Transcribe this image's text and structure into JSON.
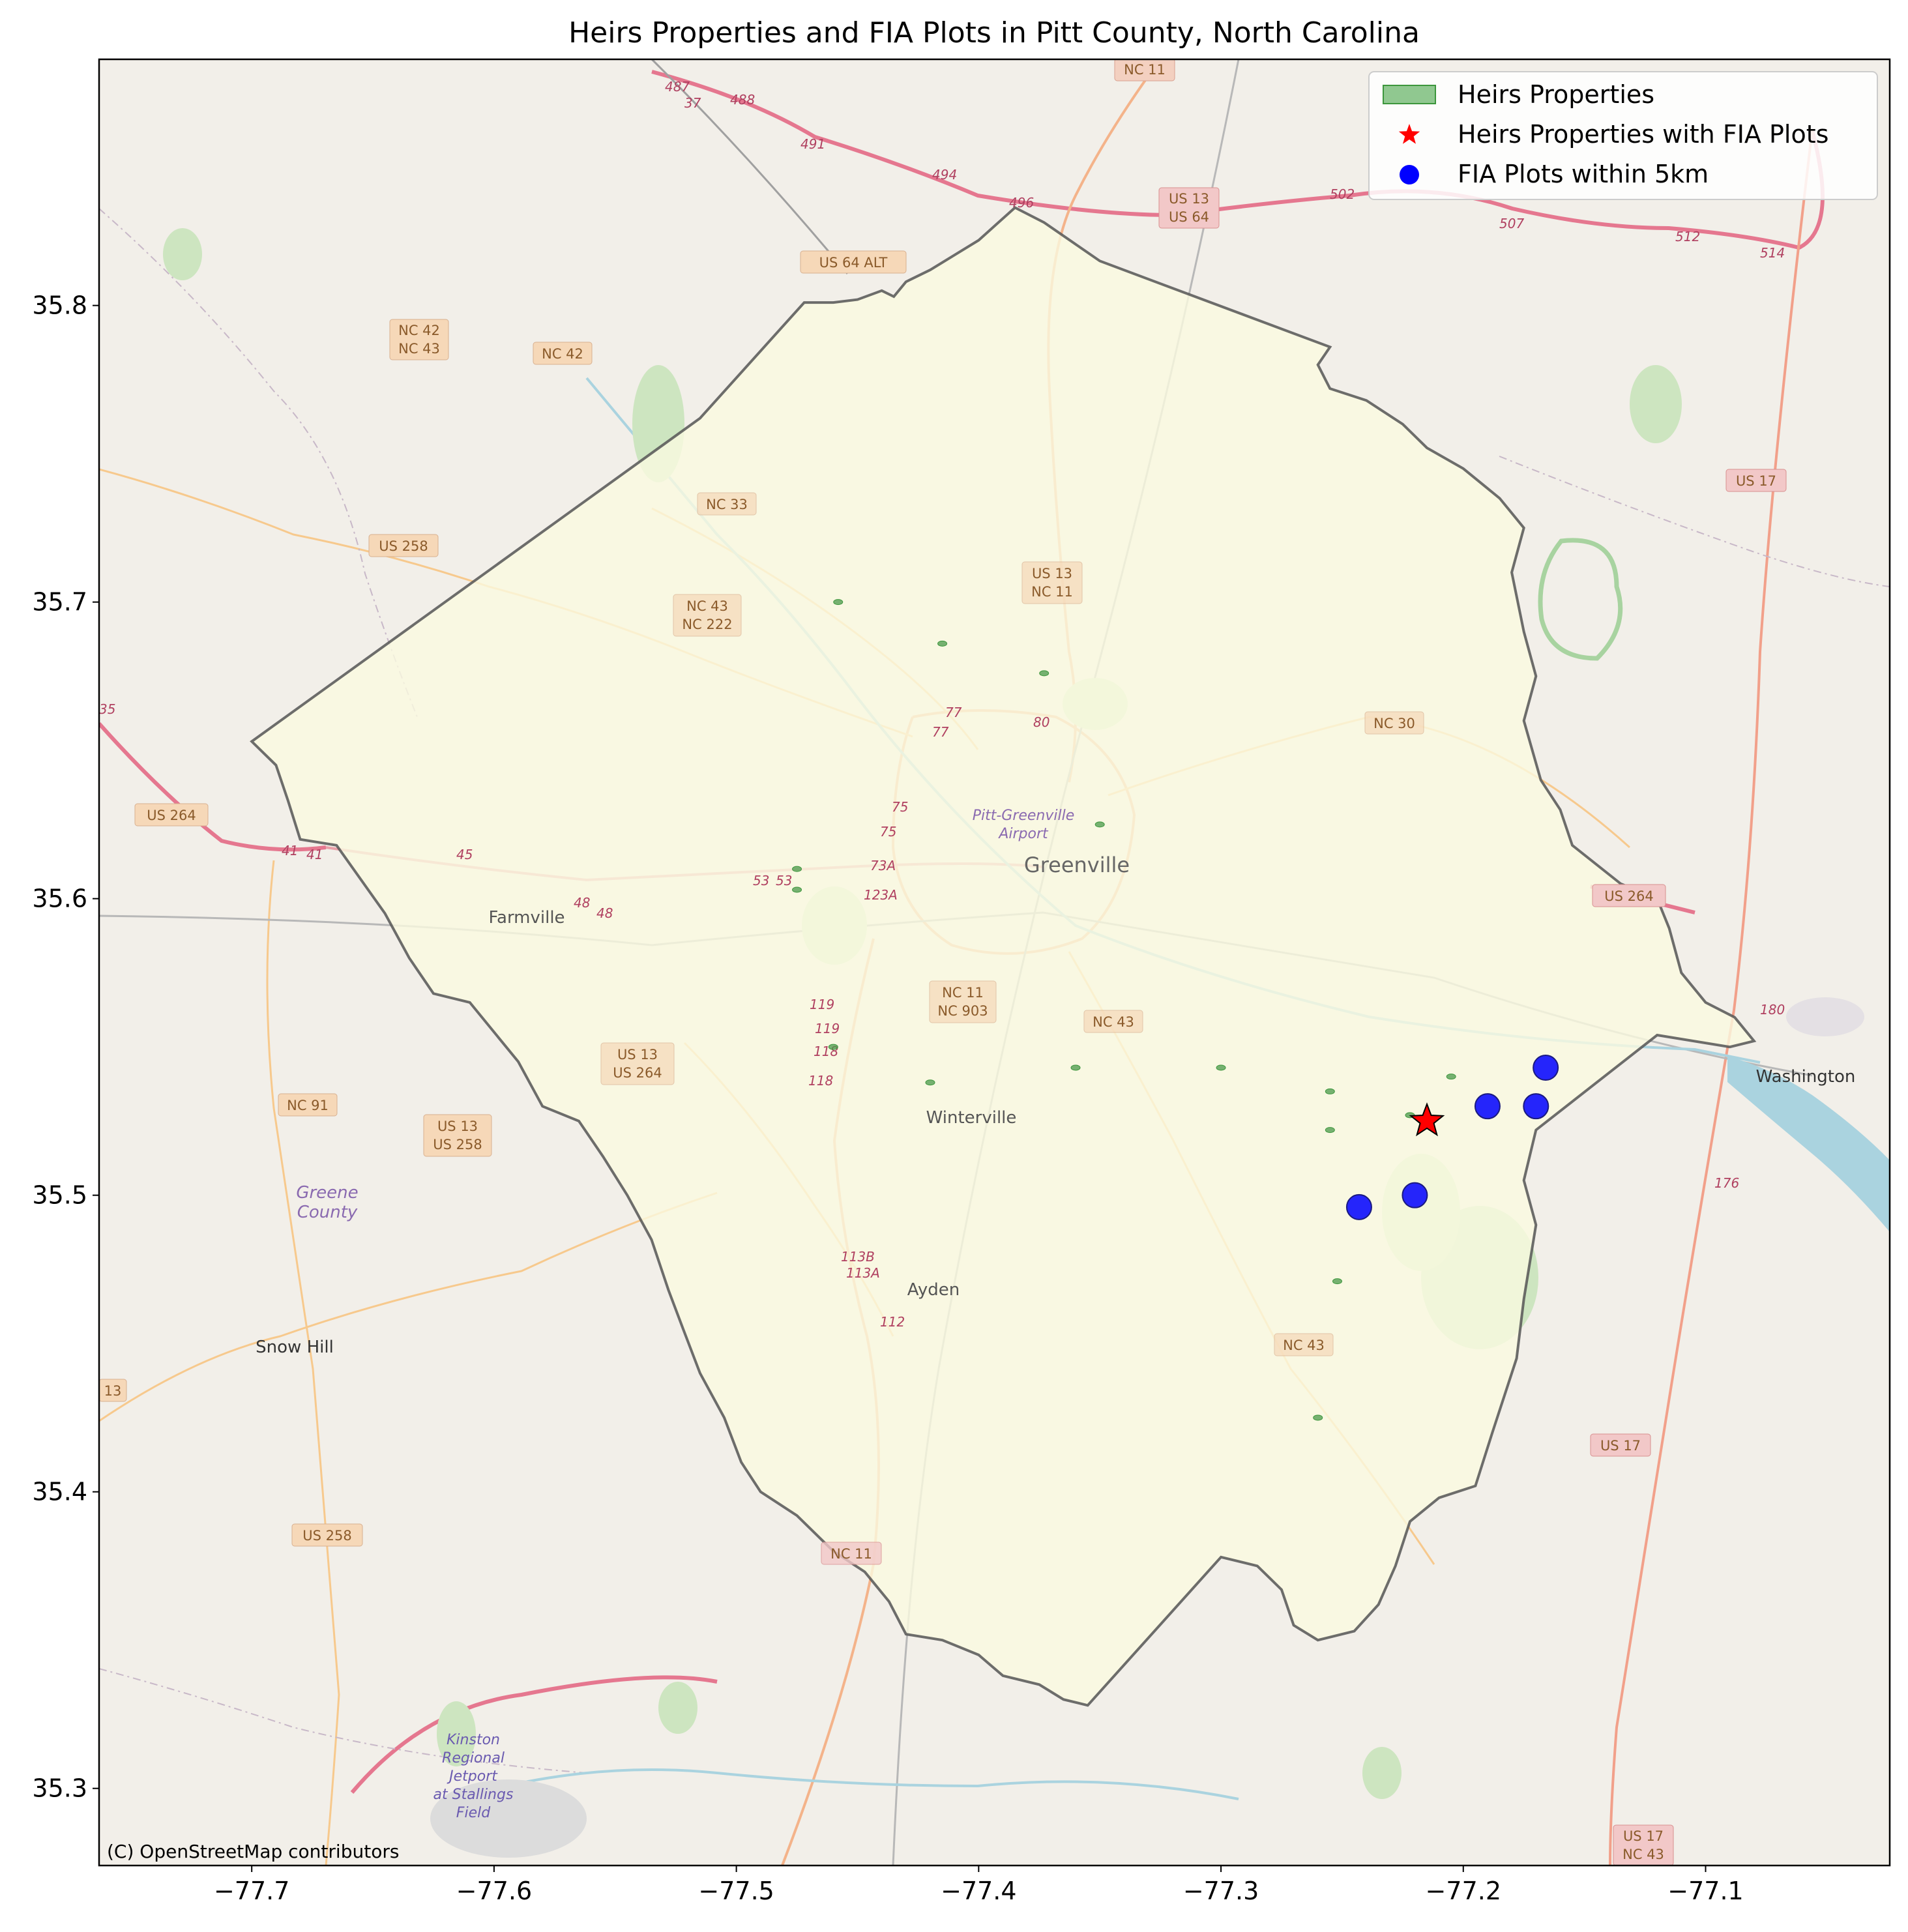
{
  "title": "Heirs Properties and FIA Plots in Pitt County, North Carolina",
  "attribution": "(C) OpenStreetMap contributors",
  "legend": {
    "placement": "upper-right",
    "items": [
      {
        "label": "Heirs Properties",
        "symbol": "patch",
        "color": "#90c890"
      },
      {
        "label": "Heirs Properties with FIA Plots",
        "symbol": "star",
        "color": "#ff0000"
      },
      {
        "label": "FIA Plots within 5km",
        "symbol": "circle",
        "color": "#0000ff"
      }
    ]
  },
  "colors": {
    "county_fill": "#fafae0",
    "county_edge": "#555555",
    "basemap": "#f2efe9",
    "heirs": "#3c963c",
    "fia": "#0000ff",
    "star": "#ff0000"
  },
  "map_labels": {
    "towns": {
      "greenville": "Greenville",
      "farmville": "Farmville",
      "winterville": "Winterville",
      "ayden": "Ayden",
      "snow_hill": "Snow Hill",
      "washington": "Washington",
      "greene_county_1": "Greene",
      "greene_county_2": "County",
      "airport_1": "Pitt-Greenville",
      "airport_2": "Airport",
      "kinston_1": "Kinston",
      "kinston_2": "Regional",
      "kinston_3": "Jetport",
      "kinston_4": "at Stallings",
      "kinston_5": "Field"
    },
    "routes": {
      "nc11_top": "NC 11",
      "us13_us64_a": "US 13",
      "us13_us64_b": "US 64",
      "us64alt": "US 64 ALT",
      "nc42_43_a": "NC 42",
      "nc42_43_b": "NC 43",
      "nc42": "NC 42",
      "us17_top": "US 17",
      "nc33": "NC 33",
      "us258_top": "US 258",
      "us13_nc11_a": "US 13",
      "us13_nc11_b": "NC 11",
      "nc43_nc222_a": "NC 43",
      "nc43_nc222_b": "NC 222",
      "nc30": "NC 30",
      "us264_left": "US 264",
      "us264_right": "US 264",
      "nc11_nc903_a": "NC 11",
      "nc11_nc903_b": "NC 903",
      "nc43_mid": "NC 43",
      "us13_us264_a": "US 13",
      "us13_us264_b": "US 264",
      "nc91": "NC 91",
      "us13_us258_a": "US 13",
      "us13_us258_b": "US 258",
      "nc43_low": "NC 43",
      "us17_low": "US 17",
      "us258_low": "US 258",
      "nc11_low": "NC 11",
      "us17_nc43_a": "US 17",
      "us17_nc43_b": "NC 43",
      "r13_left": "13"
    },
    "exits": [
      "487",
      "37",
      "488",
      "491",
      "494",
      "496",
      "502",
      "507",
      "512",
      "514",
      "77",
      "77",
      "80",
      "75",
      "75",
      "73A",
      "123A",
      "53",
      "53",
      "45",
      "48",
      "48",
      "41",
      "41",
      "119",
      "119",
      "118",
      "118",
      "113B",
      "113A",
      "112",
      "180",
      "176",
      "35"
    ]
  },
  "chart_data": {
    "type": "map",
    "title": "Heirs Properties and FIA Plots in Pitt County, North Carolina",
    "xlabel": "",
    "ylabel": "",
    "xlim": [
      -77.763,
      -77.024
    ],
    "ylim": [
      35.274,
      35.883
    ],
    "x_ticks": [
      -77.7,
      -77.6,
      -77.5,
      -77.4,
      -77.3,
      -77.2,
      -77.1
    ],
    "x_tick_labels": [
      "−77.7",
      "−77.6",
      "−77.5",
      "−77.4",
      "−77.3",
      "−77.2",
      "−77.1"
    ],
    "y_ticks": [
      35.3,
      35.4,
      35.5,
      35.6,
      35.7,
      35.8
    ],
    "y_tick_labels": [
      "35.3",
      "35.4",
      "35.5",
      "35.6",
      "35.7",
      "35.8"
    ],
    "grid": false,
    "county_boundary": [
      [
        -77.7,
        35.653
      ],
      [
        -77.69,
        35.645
      ],
      [
        -77.685,
        35.633
      ],
      [
        -77.68,
        35.62
      ],
      [
        -77.665,
        35.618
      ],
      [
        -77.645,
        35.595
      ],
      [
        -77.635,
        35.58
      ],
      [
        -77.625,
        35.568
      ],
      [
        -77.61,
        35.565
      ],
      [
        -77.6,
        35.555
      ],
      [
        -77.59,
        35.545
      ],
      [
        -77.58,
        35.53
      ],
      [
        -77.565,
        35.525
      ],
      [
        -77.555,
        35.513
      ],
      [
        -77.545,
        35.5
      ],
      [
        -77.535,
        35.485
      ],
      [
        -77.528,
        35.468
      ],
      [
        -77.522,
        35.455
      ],
      [
        -77.515,
        35.44
      ],
      [
        -77.505,
        35.425
      ],
      [
        -77.498,
        35.41
      ],
      [
        -77.49,
        35.4
      ],
      [
        -77.475,
        35.392
      ],
      [
        -77.46,
        35.38
      ],
      [
        -77.447,
        35.373
      ],
      [
        -77.437,
        35.363
      ],
      [
        -77.43,
        35.352
      ],
      [
        -77.415,
        35.35
      ],
      [
        -77.4,
        35.345
      ],
      [
        -77.39,
        35.338
      ],
      [
        -77.375,
        35.335
      ],
      [
        -77.365,
        35.33
      ],
      [
        -77.355,
        35.328
      ],
      [
        -77.3,
        35.378
      ],
      [
        -77.285,
        35.375
      ],
      [
        -77.275,
        35.367
      ],
      [
        -77.27,
        35.355
      ],
      [
        -77.26,
        35.35
      ],
      [
        -77.245,
        35.353
      ],
      [
        -77.235,
        35.362
      ],
      [
        -77.228,
        35.375
      ],
      [
        -77.222,
        35.39
      ],
      [
        -77.21,
        35.398
      ],
      [
        -77.195,
        35.402
      ],
      [
        -77.188,
        35.42
      ],
      [
        -77.178,
        35.445
      ],
      [
        -77.175,
        35.465
      ],
      [
        -77.17,
        35.49
      ],
      [
        -77.175,
        35.505
      ],
      [
        -77.17,
        35.522
      ],
      [
        -77.12,
        35.554
      ],
      [
        -77.09,
        35.55
      ],
      [
        -77.08,
        35.552
      ],
      [
        -77.088,
        35.56
      ],
      [
        -77.1,
        35.565
      ],
      [
        -77.11,
        35.575
      ],
      [
        -77.115,
        35.59
      ],
      [
        -77.12,
        35.6
      ],
      [
        -77.135,
        35.605
      ],
      [
        -77.155,
        35.618
      ],
      [
        -77.16,
        35.63
      ],
      [
        -77.168,
        35.64
      ],
      [
        -77.175,
        35.66
      ],
      [
        -77.17,
        35.675
      ],
      [
        -77.175,
        35.69
      ],
      [
        -77.18,
        35.71
      ],
      [
        -77.175,
        35.725
      ],
      [
        -77.185,
        35.735
      ],
      [
        -77.2,
        35.745
      ],
      [
        -77.215,
        35.752
      ],
      [
        -77.225,
        35.76
      ],
      [
        -77.24,
        35.768
      ],
      [
        -77.255,
        35.772
      ],
      [
        -77.26,
        35.78
      ],
      [
        -77.255,
        35.786
      ],
      [
        -77.35,
        35.815
      ],
      [
        -77.373,
        35.828
      ],
      [
        -77.385,
        35.833
      ],
      [
        -77.4,
        35.822
      ],
      [
        -77.41,
        35.817
      ],
      [
        -77.42,
        35.812
      ],
      [
        -77.43,
        35.808
      ],
      [
        -77.435,
        35.803
      ],
      [
        -77.44,
        35.805
      ],
      [
        -77.45,
        35.802
      ],
      [
        -77.46,
        35.801
      ],
      [
        -77.472,
        35.801
      ],
      [
        -77.515,
        35.762
      ],
      [
        -77.7,
        35.653
      ]
    ],
    "heirs_properties": [
      {
        "lon": -77.458,
        "lat": 35.7
      },
      {
        "lon": -77.415,
        "lat": 35.686
      },
      {
        "lon": -77.373,
        "lat": 35.676
      },
      {
        "lon": -77.35,
        "lat": 35.625
      },
      {
        "lon": -77.475,
        "lat": 35.603
      },
      {
        "lon": -77.475,
        "lat": 35.61
      },
      {
        "lon": -77.46,
        "lat": 35.55
      },
      {
        "lon": -77.42,
        "lat": 35.538
      },
      {
        "lon": -77.36,
        "lat": 35.543
      },
      {
        "lon": -77.3,
        "lat": 35.543
      },
      {
        "lon": -77.255,
        "lat": 35.535
      },
      {
        "lon": -77.255,
        "lat": 35.522
      },
      {
        "lon": -77.252,
        "lat": 35.471
      },
      {
        "lon": -77.222,
        "lat": 35.527
      },
      {
        "lon": -77.205,
        "lat": 35.54
      },
      {
        "lon": -77.26,
        "lat": 35.425
      }
    ],
    "heirs_with_fia": [
      {
        "lon": -77.215,
        "lat": 35.525
      }
    ],
    "fia_plots_within_5km": [
      {
        "lon": -77.166,
        "lat": 35.543
      },
      {
        "lon": -77.19,
        "lat": 35.53
      },
      {
        "lon": -77.17,
        "lat": 35.53
      },
      {
        "lon": -77.22,
        "lat": 35.5
      },
      {
        "lon": -77.243,
        "lat": 35.496
      }
    ]
  }
}
